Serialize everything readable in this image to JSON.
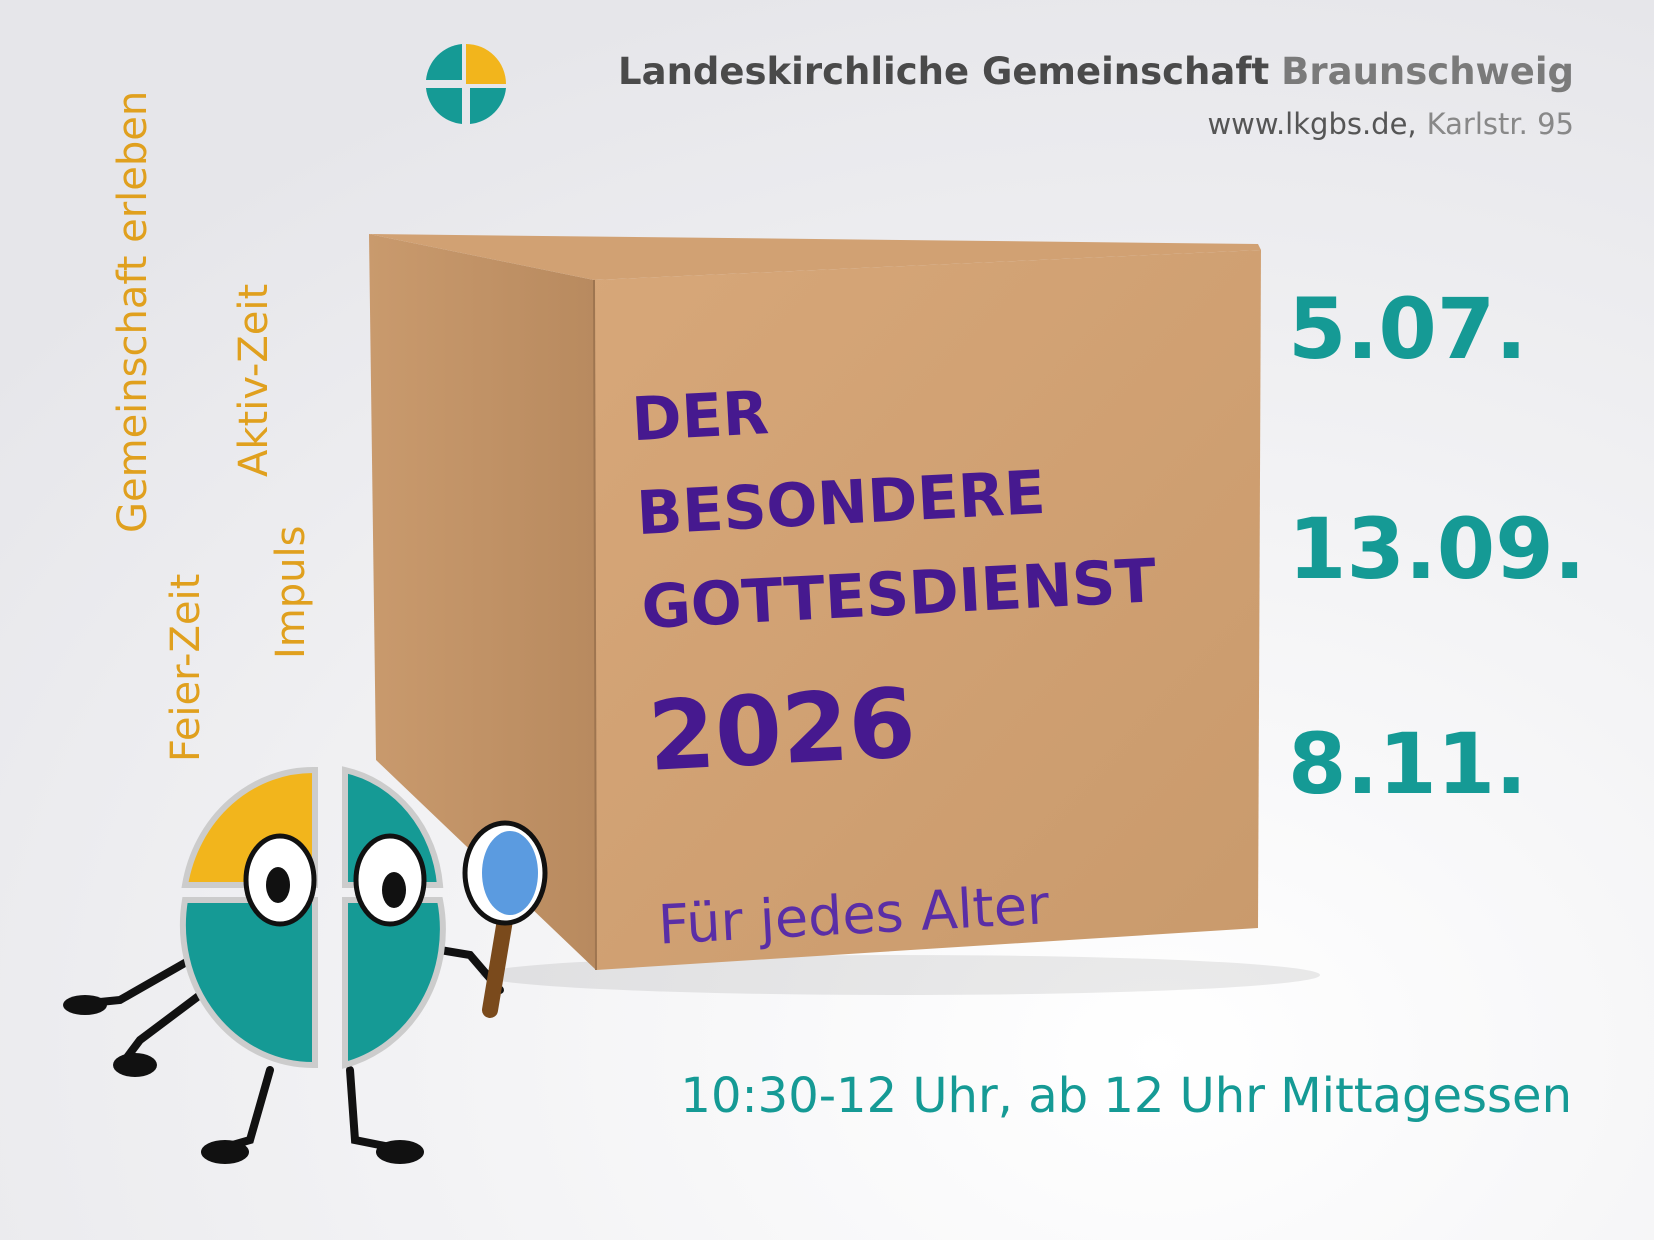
{
  "header": {
    "org_name": "Landeskirchliche Gemeinschaft",
    "org_city": "Braunschweig",
    "website": "www.lkgbs.de,",
    "address": "Karlstr. 95"
  },
  "side_words": [
    "Gemeinschaft erleben",
    "Aktiv-Zeit",
    "Impuls",
    "Feier-Zeit"
  ],
  "box": {
    "title_lines": [
      "DER",
      "BESONDERE",
      "GOTTESDIENST"
    ],
    "year": "2026",
    "tagline": "Für jedes Alter"
  },
  "dates": [
    "5.07.",
    "13.09.",
    "8.11."
  ],
  "time_info": "10:30-12 Uhr, ab 12 Uhr Mittagessen"
}
